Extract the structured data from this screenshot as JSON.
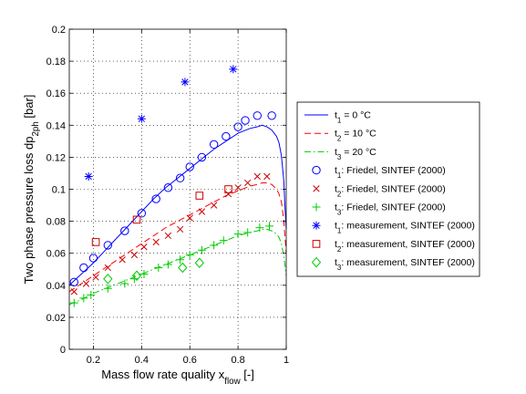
{
  "chart_data": {
    "type": "line",
    "xlabel": {
      "main": "Mass flow rate quality x",
      "sub": "flow",
      "suffix": " [-]"
    },
    "ylabel": {
      "main": "Two phase pressure loss dp",
      "sub": "2ph",
      "suffix": " [bar]"
    },
    "xlim": [
      0.1,
      1
    ],
    "ylim": [
      0,
      0.2
    ],
    "x_ticks": [
      0.2,
      0.4,
      0.6,
      0.8,
      1
    ],
    "x_tick_labels": [
      "0.2",
      "0.4",
      "0.6",
      "0.8",
      "1"
    ],
    "y_ticks": [
      0,
      0.02,
      0.04,
      0.06,
      0.08,
      0.1,
      0.12,
      0.14,
      0.16,
      0.18,
      0.2
    ],
    "y_tick_labels": [
      "0",
      "0.02",
      "0.04",
      "0.06",
      "0.08",
      "0.1",
      "0.12",
      "0.14",
      "0.16",
      "0.18",
      "0.2"
    ],
    "grid": true,
    "grid_style": "dotted",
    "legend_position": "outside-right",
    "series": [
      {
        "id": "line1",
        "name": "t1 = 0 °C",
        "legend": {
          "pre": "t",
          "sub": "1",
          "post": " =  0 °C"
        },
        "kind": "line",
        "dash": "solid",
        "color": "#0000ff",
        "x": [
          0.1,
          0.15,
          0.2,
          0.25,
          0.3,
          0.35,
          0.4,
          0.45,
          0.5,
          0.55,
          0.6,
          0.65,
          0.7,
          0.75,
          0.8,
          0.85,
          0.88,
          0.9,
          0.92,
          0.94,
          0.96,
          0.97,
          0.98,
          0.99,
          0.995,
          1.0
        ],
        "y": [
          0.04,
          0.047,
          0.054,
          0.062,
          0.07,
          0.078,
          0.086,
          0.094,
          0.101,
          0.107,
          0.113,
          0.119,
          0.125,
          0.13,
          0.135,
          0.138,
          0.139,
          0.14,
          0.139,
          0.137,
          0.133,
          0.129,
          0.121,
          0.105,
          0.088,
          0.075
        ]
      },
      {
        "id": "line2",
        "name": "t2 = 10 °C",
        "legend": {
          "pre": "t",
          "sub": "2",
          "post": " = 10 °C"
        },
        "kind": "line",
        "dash": "dashed",
        "color": "#ff0000",
        "x": [
          0.1,
          0.15,
          0.2,
          0.25,
          0.3,
          0.35,
          0.4,
          0.45,
          0.5,
          0.55,
          0.6,
          0.65,
          0.7,
          0.75,
          0.8,
          0.85,
          0.88,
          0.9,
          0.92,
          0.94,
          0.96,
          0.97,
          0.98,
          0.99,
          0.995,
          1.0
        ],
        "y": [
          0.036,
          0.041,
          0.046,
          0.051,
          0.056,
          0.061,
          0.066,
          0.071,
          0.076,
          0.08,
          0.084,
          0.088,
          0.092,
          0.096,
          0.099,
          0.102,
          0.103,
          0.104,
          0.104,
          0.103,
          0.1,
          0.097,
          0.092,
          0.08,
          0.07,
          0.06
        ]
      },
      {
        "id": "line3",
        "name": "t3 = 20 °C",
        "legend": {
          "pre": "t",
          "sub": "3",
          "post": " = 20 °C"
        },
        "kind": "line",
        "dash": "dashdot",
        "color": "#00cc00",
        "x": [
          0.1,
          0.15,
          0.2,
          0.25,
          0.3,
          0.35,
          0.4,
          0.45,
          0.5,
          0.55,
          0.6,
          0.65,
          0.7,
          0.75,
          0.8,
          0.85,
          0.88,
          0.9,
          0.92,
          0.94,
          0.96,
          0.97,
          0.98,
          0.99,
          0.995,
          1.0
        ],
        "y": [
          0.028,
          0.031,
          0.035,
          0.038,
          0.041,
          0.044,
          0.047,
          0.05,
          0.053,
          0.056,
          0.059,
          0.062,
          0.065,
          0.068,
          0.071,
          0.073,
          0.074,
          0.075,
          0.075,
          0.074,
          0.072,
          0.07,
          0.066,
          0.058,
          0.052,
          0.046
        ]
      },
      {
        "id": "friedel1",
        "name": "t1: Friedel, SINTEF (2000)",
        "legend": {
          "pre": "t",
          "sub": "1",
          "post": ": Friedel, SINTEF (2000)"
        },
        "kind": "marker",
        "marker": "circle",
        "color": "#0000ff",
        "x": [
          0.12,
          0.16,
          0.2,
          0.26,
          0.33,
          0.4,
          0.46,
          0.51,
          0.56,
          0.6,
          0.65,
          0.7,
          0.75,
          0.8,
          0.83,
          0.88,
          0.94
        ],
        "y": [
          0.042,
          0.051,
          0.057,
          0.065,
          0.074,
          0.085,
          0.094,
          0.101,
          0.107,
          0.114,
          0.12,
          0.128,
          0.133,
          0.139,
          0.143,
          0.146,
          0.146
        ]
      },
      {
        "id": "friedel2",
        "name": "t2: Friedel, SINTEF (2000)",
        "legend": {
          "pre": "t",
          "sub": "2",
          "post": ": Friedel, SINTEF (2000)"
        },
        "kind": "marker",
        "marker": "x",
        "color": "#cc0000",
        "x": [
          0.12,
          0.17,
          0.21,
          0.26,
          0.32,
          0.37,
          0.41,
          0.46,
          0.51,
          0.56,
          0.6,
          0.65,
          0.7,
          0.76,
          0.8,
          0.84,
          0.88,
          0.92
        ],
        "y": [
          0.036,
          0.041,
          0.045,
          0.051,
          0.056,
          0.059,
          0.064,
          0.067,
          0.071,
          0.075,
          0.082,
          0.086,
          0.09,
          0.097,
          0.101,
          0.104,
          0.108,
          0.108
        ]
      },
      {
        "id": "friedel3",
        "name": "t3: Friedel, SINTEF (2000)",
        "legend": {
          "pre": "t",
          "sub": "3",
          "post": ": Friedel, SINTEF (2000)"
        },
        "kind": "marker",
        "marker": "plus",
        "color": "#00cc00",
        "x": [
          0.12,
          0.16,
          0.19,
          0.26,
          0.33,
          0.37,
          0.41,
          0.47,
          0.51,
          0.56,
          0.6,
          0.65,
          0.7,
          0.74,
          0.8,
          0.84,
          0.89,
          0.93
        ],
        "y": [
          0.029,
          0.032,
          0.034,
          0.038,
          0.041,
          0.044,
          0.047,
          0.051,
          0.053,
          0.056,
          0.059,
          0.062,
          0.065,
          0.068,
          0.072,
          0.073,
          0.076,
          0.077
        ]
      },
      {
        "id": "meas1",
        "name": "t1: measurement, SINTEF (2000)",
        "legend": {
          "pre": "t",
          "sub": "1",
          "post": ": measurement, SINTEF (2000)"
        },
        "kind": "marker",
        "marker": "star",
        "color": "#0000ff",
        "x": [
          0.18,
          0.4,
          0.58,
          0.78
        ],
        "y": [
          0.108,
          0.144,
          0.167,
          0.175
        ]
      },
      {
        "id": "meas2",
        "name": "t2: measurement, SINTEF (2000)",
        "legend": {
          "pre": "t",
          "sub": "2",
          "post": ": measurement, SINTEF (2000)"
        },
        "kind": "marker",
        "marker": "square",
        "color": "#cc0000",
        "x": [
          0.21,
          0.38,
          0.64,
          0.76
        ],
        "y": [
          0.067,
          0.081,
          0.096,
          0.1
        ]
      },
      {
        "id": "meas3",
        "name": "t3: measurement, SINTEF (2000)",
        "legend": {
          "pre": "t",
          "sub": "3",
          "post": ": measurement, SINTEF (2000)"
        },
        "kind": "marker",
        "marker": "diamond",
        "color": "#00cc00",
        "x": [
          0.26,
          0.38,
          0.57,
          0.64
        ],
        "y": [
          0.044,
          0.046,
          0.051,
          0.054
        ]
      }
    ]
  }
}
